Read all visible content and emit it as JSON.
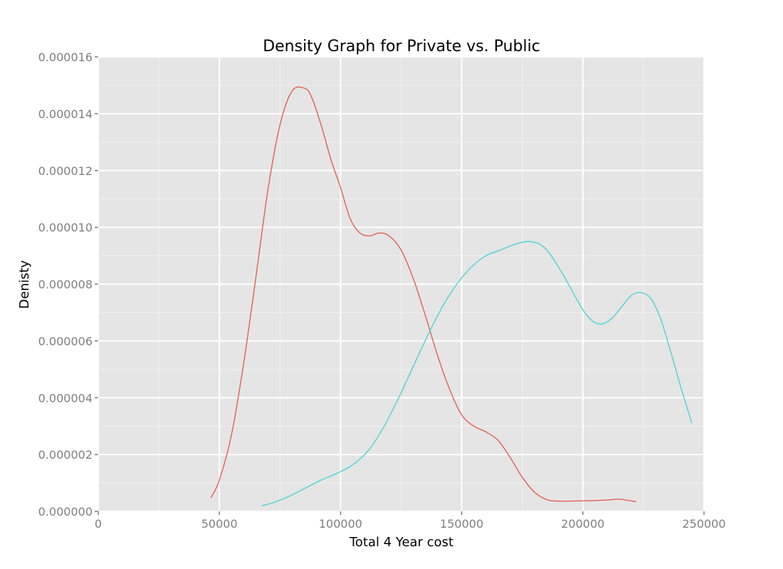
{
  "chart_data": {
    "type": "line",
    "title": "Density Graph for Private vs. Public",
    "xlabel": "Total 4 Year cost",
    "ylabel": "Denisty",
    "xlim": [
      0,
      250000
    ],
    "ylim": [
      0,
      1.6e-05
    ],
    "grid": true,
    "legend": "none",
    "x_ticks": [
      0,
      50000,
      100000,
      150000,
      200000,
      250000
    ],
    "x_tick_labels": [
      "0",
      "50000",
      "100000",
      "150000",
      "200000",
      "250000"
    ],
    "y_ticks": [
      0,
      2e-06,
      4e-06,
      6e-06,
      8e-06,
      1e-05,
      1.2e-05,
      1.4e-05,
      1.6e-05
    ],
    "y_tick_labels": [
      "0.000000",
      "0.000002",
      "0.000004",
      "0.000006",
      "0.000008",
      "0.000010",
      "0.000012",
      "0.000014",
      "0.000016"
    ],
    "series": [
      {
        "name": "series-red",
        "color": "#e16050",
        "x": [
          46500,
          50000,
          55000,
          60000,
          65000,
          70000,
          75000,
          80000,
          85000,
          88000,
          92000,
          96000,
          100000,
          104000,
          108000,
          112000,
          116000,
          120000,
          125000,
          130000,
          135000,
          140000,
          145000,
          150000,
          155000,
          160000,
          165000,
          170000,
          175000,
          180000,
          185000,
          190000,
          200000,
          210000,
          215000,
          222000
        ],
        "values": [
          4.8e-07,
          1.1e-06,
          2.7e-06,
          5.2e-06,
          8.2e-06,
          1.13e-05,
          1.36e-05,
          1.48e-05,
          1.49e-05,
          1.46e-05,
          1.36e-05,
          1.24e-05,
          1.14e-05,
          1.03e-05,
          9.8e-06,
          9.7e-06,
          9.8e-06,
          9.7e-06,
          9.2e-06,
          8.2e-06,
          6.9e-06,
          5.5e-06,
          4.3e-06,
          3.4e-06,
          3e-06,
          2.8e-06,
          2.5e-06,
          1.9e-06,
          1.2e-06,
          6.8e-07,
          4.2e-07,
          3.6e-07,
          3.7e-07,
          4e-07,
          4.3e-07,
          3.4e-07
        ]
      },
      {
        "name": "series-cyan",
        "color": "#4fd2d8",
        "x": [
          67500,
          72000,
          78000,
          85000,
          92000,
          100000,
          106000,
          112000,
          118000,
          124000,
          130000,
          136000,
          142000,
          148000,
          154000,
          160000,
          166000,
          172000,
          178000,
          184000,
          190000,
          196000,
          200000,
          204000,
          208000,
          212000,
          216000,
          220000,
          224000,
          228000,
          232000,
          236000,
          240000,
          245000
        ],
        "values": [
          2e-07,
          3e-07,
          5e-07,
          8e-07,
          1.1e-06,
          1.4e-06,
          1.7e-06,
          2.2e-06,
          3e-06,
          4e-06,
          5.1e-06,
          6.2e-06,
          7.2e-06,
          8e-06,
          8.6e-06,
          9e-06,
          9.2e-06,
          9.4e-06,
          9.5e-06,
          9.3e-06,
          8.6e-06,
          7.7e-06,
          7.1e-06,
          6.7e-06,
          6.6e-06,
          6.8e-06,
          7.2e-06,
          7.6e-06,
          7.7e-06,
          7.5e-06,
          6.8e-06,
          5.7e-06,
          4.5e-06,
          3.1e-06
        ]
      }
    ]
  }
}
